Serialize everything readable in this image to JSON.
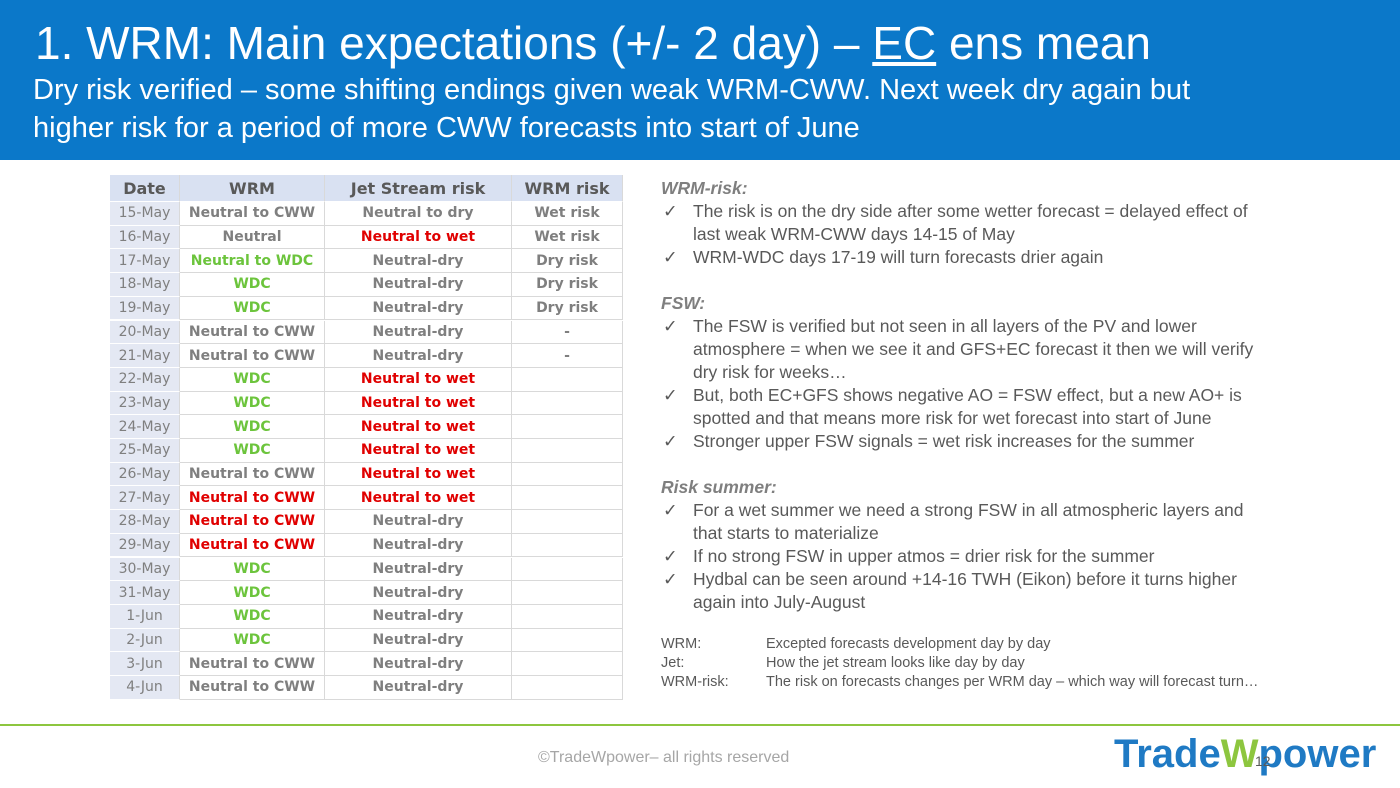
{
  "header": {
    "title": [
      "1. WRM: Main expectations (+/- 2 day) – ",
      "EC",
      " ens mean"
    ],
    "subtitle": [
      "Dry risk verified – some shifting endings given weak WRM-CWW. Next week dry again but",
      "higher risk for a period of more CWW forecasts into start of June"
    ],
    "background": "#0b78c9"
  },
  "table": {
    "headers": [
      "Date",
      "WRM",
      "Jet Stream risk",
      "WRM risk"
    ],
    "rows": [
      [
        "15-May",
        "Neutral to CWW",
        "Neutral to dry",
        "Wet risk"
      ],
      [
        "16-May",
        "Neutral",
        "Neutral to wet",
        "Wet risk"
      ],
      [
        "17-May",
        "Neutral to WDC",
        "Neutral-dry",
        "Dry risk"
      ],
      [
        "18-May",
        "WDC",
        "Neutral-dry",
        "Dry risk"
      ],
      [
        "19-May",
        "WDC",
        "Neutral-dry",
        "Dry risk"
      ],
      [
        "20-May",
        "Neutral to CWW",
        "Neutral-dry",
        "-"
      ],
      [
        "21-May",
        "Neutral to CWW",
        "Neutral-dry",
        "-"
      ],
      [
        "22-May",
        "WDC",
        "Neutral to wet",
        null
      ],
      [
        "23-May",
        "WDC",
        "Neutral to wet",
        null
      ],
      [
        "24-May",
        "WDC",
        "Neutral to wet",
        null
      ],
      [
        "25-May",
        "WDC",
        "Neutral to wet",
        null
      ],
      [
        "26-May",
        "Neutral to CWW",
        "Neutral to wet",
        null
      ],
      [
        "27-May",
        "Neutral to CWW",
        "Neutral to wet",
        null
      ],
      [
        "28-May",
        "Neutral to CWW",
        "Neutral-dry",
        null
      ],
      [
        "29-May",
        "Neutral to CWW",
        "Neutral-dry",
        null
      ],
      [
        "30-May",
        "WDC",
        "Neutral-dry",
        null
      ],
      [
        "31-May",
        "WDC",
        "Neutral-dry",
        null
      ],
      [
        "1-Jun",
        "WDC",
        "Neutral-dry",
        null
      ],
      [
        "2-Jun",
        "WDC",
        "Neutral-dry",
        null
      ],
      [
        "3-Jun",
        "Neutral to CWW",
        "Neutral-dry",
        null
      ],
      [
        "4-Jun",
        "Neutral to CWW",
        "Neutral-dry",
        null
      ]
    ],
    "colors": [
      [
        "#7f7f7f",
        "#7f7f7f",
        "#7f7f7f",
        "#7f7f7f"
      ],
      [
        "#7f7f7f",
        "#7f7f7f",
        "#e00000",
        "#7f7f7f"
      ],
      [
        "#7f7f7f",
        "#6cc43c",
        "#7f7f7f",
        "#7f7f7f"
      ],
      [
        "#7f7f7f",
        "#6cc43c",
        "#7f7f7f",
        "#7f7f7f"
      ],
      [
        "#7f7f7f",
        "#6cc43c",
        "#7f7f7f",
        "#7f7f7f"
      ],
      [
        "#7f7f7f",
        "#7f7f7f",
        "#7f7f7f",
        "#7f7f7f"
      ],
      [
        "#7f7f7f",
        "#7f7f7f",
        "#7f7f7f",
        "#7f7f7f"
      ],
      [
        "#7f7f7f",
        "#6cc43c",
        "#e00000",
        null
      ],
      [
        "#7f7f7f",
        "#6cc43c",
        "#e00000",
        null
      ],
      [
        "#7f7f7f",
        "#6cc43c",
        "#e00000",
        null
      ],
      [
        "#7f7f7f",
        "#6cc43c",
        "#e00000",
        null
      ],
      [
        "#7f7f7f",
        "#7f7f7f",
        "#e00000",
        null
      ],
      [
        "#7f7f7f",
        "#e00000",
        "#e00000",
        null
      ],
      [
        "#7f7f7f",
        "#e00000",
        "#7f7f7f",
        null
      ],
      [
        "#7f7f7f",
        "#e00000",
        "#7f7f7f",
        null
      ],
      [
        "#7f7f7f",
        "#6cc43c",
        "#7f7f7f",
        null
      ],
      [
        "#7f7f7f",
        "#6cc43c",
        "#7f7f7f",
        null
      ],
      [
        "#7f7f7f",
        "#6cc43c",
        "#7f7f7f",
        null
      ],
      [
        "#7f7f7f",
        "#6cc43c",
        "#7f7f7f",
        null
      ],
      [
        "#7f7f7f",
        "#7f7f7f",
        "#7f7f7f",
        null
      ],
      [
        "#7f7f7f",
        "#7f7f7f",
        "#7f7f7f",
        null
      ]
    ]
  },
  "notes": {
    "sections": [
      {
        "heading": "WRM-risk:",
        "bullets": [
          [
            "The risk is on the dry side after some wetter forecast = delayed effect of",
            "last weak WRM-CWW days 14-15 of May"
          ],
          [
            "WRM-WDC days 17-19 will turn forecasts drier again"
          ]
        ]
      },
      {
        "heading": "FSW:",
        "bullets": [
          [
            "The FSW is verified but not seen in all layers of the PV and lower",
            "atmosphere = when we see it and GFS+EC forecast it then we will verify",
            "dry risk for weeks…"
          ],
          [
            "But, both EC+GFS shows negative AO = FSW effect, but a new AO+ is",
            "spotted and that means more risk for wet forecast into start of June"
          ],
          [
            "Stronger upper FSW signals = wet risk increases for the summer"
          ]
        ]
      },
      {
        "heading": "Risk summer:",
        "bullets": [
          [
            "For a wet summer we need a strong FSW in all atmospheric layers and",
            "that starts to materialize"
          ],
          [
            "If no strong FSW in upper atmos = drier risk for the summer"
          ],
          [
            "Hydbal can be seen around +14-16 TWH (Eikon) before it turns higher",
            "again into July-August"
          ]
        ]
      }
    ],
    "definitions": [
      [
        "WRM:",
        "Excepted forecasts development day by day"
      ],
      [
        "Jet:",
        "How the jet stream looks like day by day"
      ],
      [
        "WRM-risk:",
        "The risk on forecasts changes per WRM day – which way will forecast turn…"
      ]
    ]
  },
  "footer": {
    "copyright": "©TradeWpower– all rights reserved",
    "page": "12",
    "logo": [
      "Trade",
      "W",
      "power"
    ]
  }
}
